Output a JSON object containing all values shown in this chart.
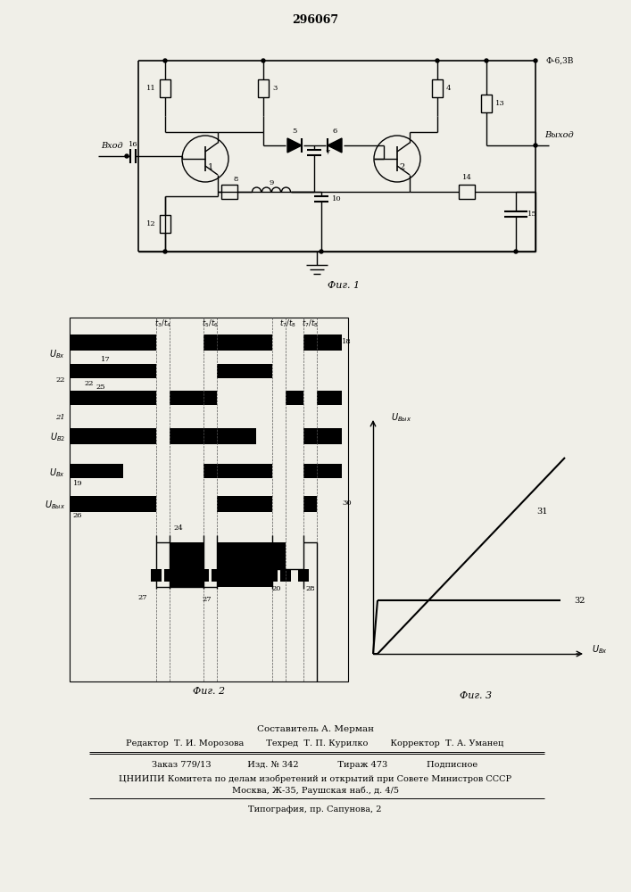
{
  "title": "296067",
  "fig1_caption": "Фиг. 1",
  "fig2_caption": "Фиг. 2",
  "fig3_caption": "Фиг. 3",
  "footer_comp": "Составитель А. Мерман",
  "footer_editors": "Редактор  Т. И. Морозова        Техред  Т. П. Курилко        Корректор  Т. А. Уманец",
  "footer_order": "Заказ 779/13             Изд. № 342              Тираж 473              Подписное",
  "footer_org": "ЦНИИПИ Комитета по делам изобретений и открытий при Совете Министров СССР",
  "footer_addr": "Москва, Ж-35, Раушская наб., д. 4/5",
  "footer_print": "Типография, пр. Сапунова, 2",
  "bg_color": "#f0efe8"
}
